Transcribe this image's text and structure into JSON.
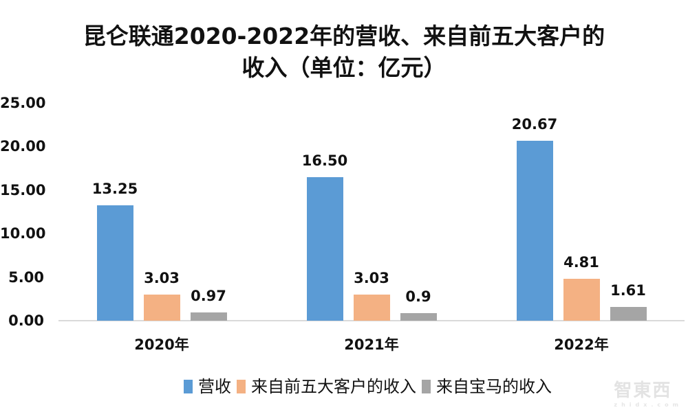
{
  "title": {
    "line1": "昆仑联通2020-2022年的营收、来自前五大客户的",
    "line2": "收入（单位：亿元）"
  },
  "y_axis": {
    "ticks": [
      "25.00",
      "20.00",
      "15.00",
      "10.00",
      "5.00",
      "0.00"
    ]
  },
  "x_axis": {
    "categories": [
      "2020年",
      "2021年",
      "2022年"
    ]
  },
  "legend": [
    {
      "label": "营收",
      "color": "#5b9bd5"
    },
    {
      "label": "来自前五大客户的收入",
      "color": "#f4b183"
    },
    {
      "label": "来自宝马的收入",
      "color": "#a5a5a5"
    }
  ],
  "data_labels": {
    "revenue": [
      "13.25",
      "16.50",
      "20.67"
    ],
    "top5": [
      "3.03",
      "3.03",
      "4.81"
    ],
    "bmw": [
      "0.97",
      "0.9",
      "1.61"
    ]
  },
  "watermark": {
    "text": "智東西",
    "sub": "zhidx.com"
  },
  "chart_data": {
    "type": "bar",
    "title": "昆仑联通2020-2022年的营收、来自前五大客户的收入（单位：亿元）",
    "categories": [
      "2020年",
      "2021年",
      "2022年"
    ],
    "series": [
      {
        "name": "营收",
        "values": [
          13.25,
          16.5,
          20.67
        ],
        "color": "#5b9bd5"
      },
      {
        "name": "来自前五大客户的收入",
        "values": [
          3.03,
          3.03,
          4.81
        ],
        "color": "#f4b183"
      },
      {
        "name": "来自宝马的收入",
        "values": [
          0.97,
          0.9,
          1.61
        ],
        "color": "#a5a5a5"
      }
    ],
    "xlabel": "",
    "ylabel": "",
    "ylim": [
      0,
      25
    ],
    "yticks": [
      0,
      5,
      10,
      15,
      20,
      25
    ],
    "grid": false,
    "legend_position": "bottom",
    "data_labels": true
  }
}
